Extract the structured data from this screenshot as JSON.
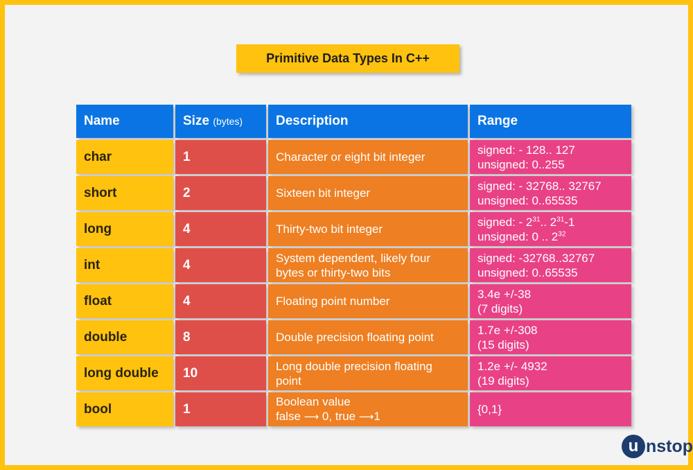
{
  "title": "Primitive Data Types In C++",
  "colors": {
    "frame": "#ffc20e",
    "header": "#0a74e4",
    "name_col": "#ffc20e",
    "size_col": "#df4f4a",
    "desc_col": "#ee7f22",
    "range_col": "#e94186",
    "logo": "#1e3d6f"
  },
  "table": {
    "headers": {
      "name": "Name",
      "size": "Size",
      "size_unit": "(bytes)",
      "description": "Description",
      "range": "Range"
    },
    "rows": [
      {
        "name": "char",
        "size": "1",
        "desc1": "Character or eight bit integer",
        "desc2": "",
        "range1": "signed: - 128.. 127",
        "range2": "unsigned: 0..255"
      },
      {
        "name": "short",
        "size": "2",
        "desc1": "Sixteen bit integer",
        "desc2": "",
        "range1": "signed: - 32768.. 32767",
        "range2": "unsigned: 0..65535"
      },
      {
        "name": "long",
        "size": "4",
        "desc1": "Thirty-two bit integer",
        "desc2": "",
        "range_a": "signed: - 2",
        "range_a_sup": "31",
        "range_b": ".. 2",
        "range_b_sup": "31",
        "range_c": "-1",
        "range_d": "unsigned: 0 .. 2",
        "range_d_sup": "32"
      },
      {
        "name": "int",
        "size": "4",
        "desc1": "System dependent, likely four",
        "desc2": "bytes or thirty-two bits",
        "range1": "signed: -32768..32767",
        "range2": "unsigned: 0..65535"
      },
      {
        "name": "float",
        "size": "4",
        "desc1": "Floating point number",
        "desc2": "",
        "range1": "3.4e +/-38",
        "range2": "(7 digits)"
      },
      {
        "name": "double",
        "size": "8",
        "desc1": "Double precision floating point",
        "desc2": "",
        "range1": "1.7e +/-308",
        "range2": "(15 digits)"
      },
      {
        "name": "long double",
        "size": "10",
        "desc1": "Long double precision floating",
        "desc2": "point",
        "range1": "1.2e +/- 4932",
        "range2": "(19 digits)"
      },
      {
        "name": "bool",
        "size": "1",
        "desc1": "Boolean value",
        "desc2_a": "false ",
        "desc2_arrow1": "⟶",
        "desc2_b": " 0, true ",
        "desc2_arrow2": "⟶",
        "desc2_c": "1",
        "range1": "{0,1}",
        "range2": ""
      }
    ]
  },
  "logo": {
    "first": "u",
    "rest": "nstop"
  }
}
